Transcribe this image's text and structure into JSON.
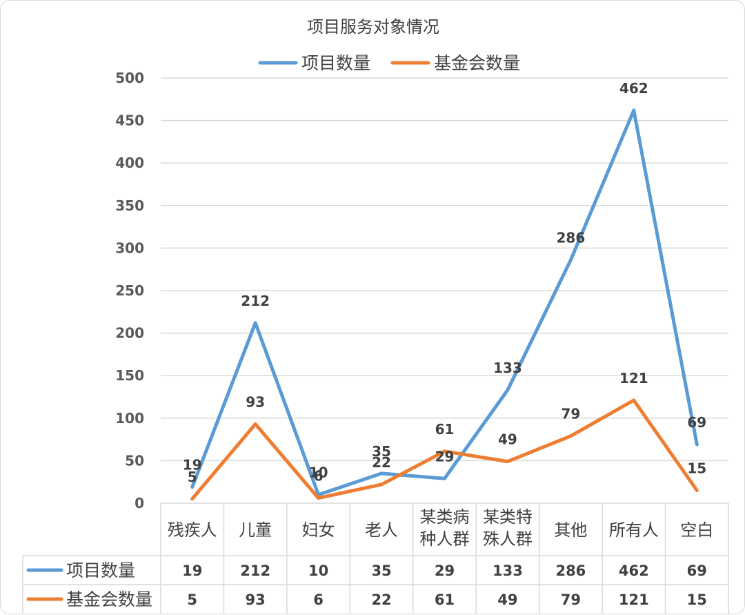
{
  "chart_data": {
    "type": "line",
    "title": "项目服务对象情况",
    "categories": [
      "残疾人",
      "儿童",
      "妇女",
      "老人",
      "某类病种人群",
      "某类特殊人群",
      "其他",
      "所有人",
      "空白"
    ],
    "category_lines": [
      [
        "残疾人"
      ],
      [
        "儿童"
      ],
      [
        "妇女"
      ],
      [
        "老人"
      ],
      [
        "某类病",
        "种人群"
      ],
      [
        "某类特",
        "殊人群"
      ],
      [
        "其他"
      ],
      [
        "所有人"
      ],
      [
        "空白"
      ]
    ],
    "series": [
      {
        "name": "项目数量",
        "color": "#5b9bd5",
        "values": [
          19,
          212,
          10,
          35,
          29,
          133,
          286,
          462,
          69
        ]
      },
      {
        "name": "基金会数量",
        "color": "#ed7d31",
        "values": [
          5,
          93,
          6,
          22,
          61,
          49,
          79,
          121,
          15
        ]
      }
    ],
    "ylim": [
      0,
      500
    ],
    "yticks": [
      0,
      50,
      100,
      150,
      200,
      250,
      300,
      350,
      400,
      450,
      500
    ],
    "grid": true,
    "legend": "top-center",
    "data_table": true
  }
}
